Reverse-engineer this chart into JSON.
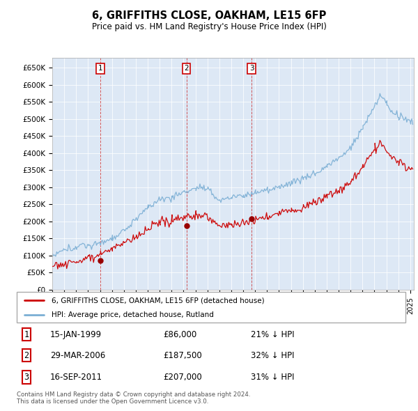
{
  "title": "6, GRIFFITHS CLOSE, OAKHAM, LE15 6FP",
  "subtitle": "Price paid vs. HM Land Registry's House Price Index (HPI)",
  "legend_line1": "6, GRIFFITHS CLOSE, OAKHAM, LE15 6FP (detached house)",
  "legend_line2": "HPI: Average price, detached house, Rutland",
  "red_color": "#cc0000",
  "blue_color": "#7aaed4",
  "chart_bg": "#dde8f5",
  "sale_prices": [
    86000,
    187500,
    207000
  ],
  "sale_years_float": [
    1999.04,
    2006.24,
    2011.71
  ],
  "sale_labels": [
    "1",
    "2",
    "3"
  ],
  "sale_info": [
    [
      "1",
      "15-JAN-1999",
      "£86,000",
      "21% ↓ HPI"
    ],
    [
      "2",
      "29-MAR-2006",
      "£187,500",
      "32% ↓ HPI"
    ],
    [
      "3",
      "16-SEP-2011",
      "£207,000",
      "31% ↓ HPI"
    ]
  ],
  "footer_text": "Contains HM Land Registry data © Crown copyright and database right 2024.\nThis data is licensed under the Open Government Licence v3.0.",
  "ylim": [
    0,
    680000
  ],
  "yticks": [
    0,
    50000,
    100000,
    150000,
    200000,
    250000,
    300000,
    350000,
    400000,
    450000,
    500000,
    550000,
    600000,
    650000
  ],
  "xlim_start": 1995.0,
  "xlim_end": 2025.3
}
